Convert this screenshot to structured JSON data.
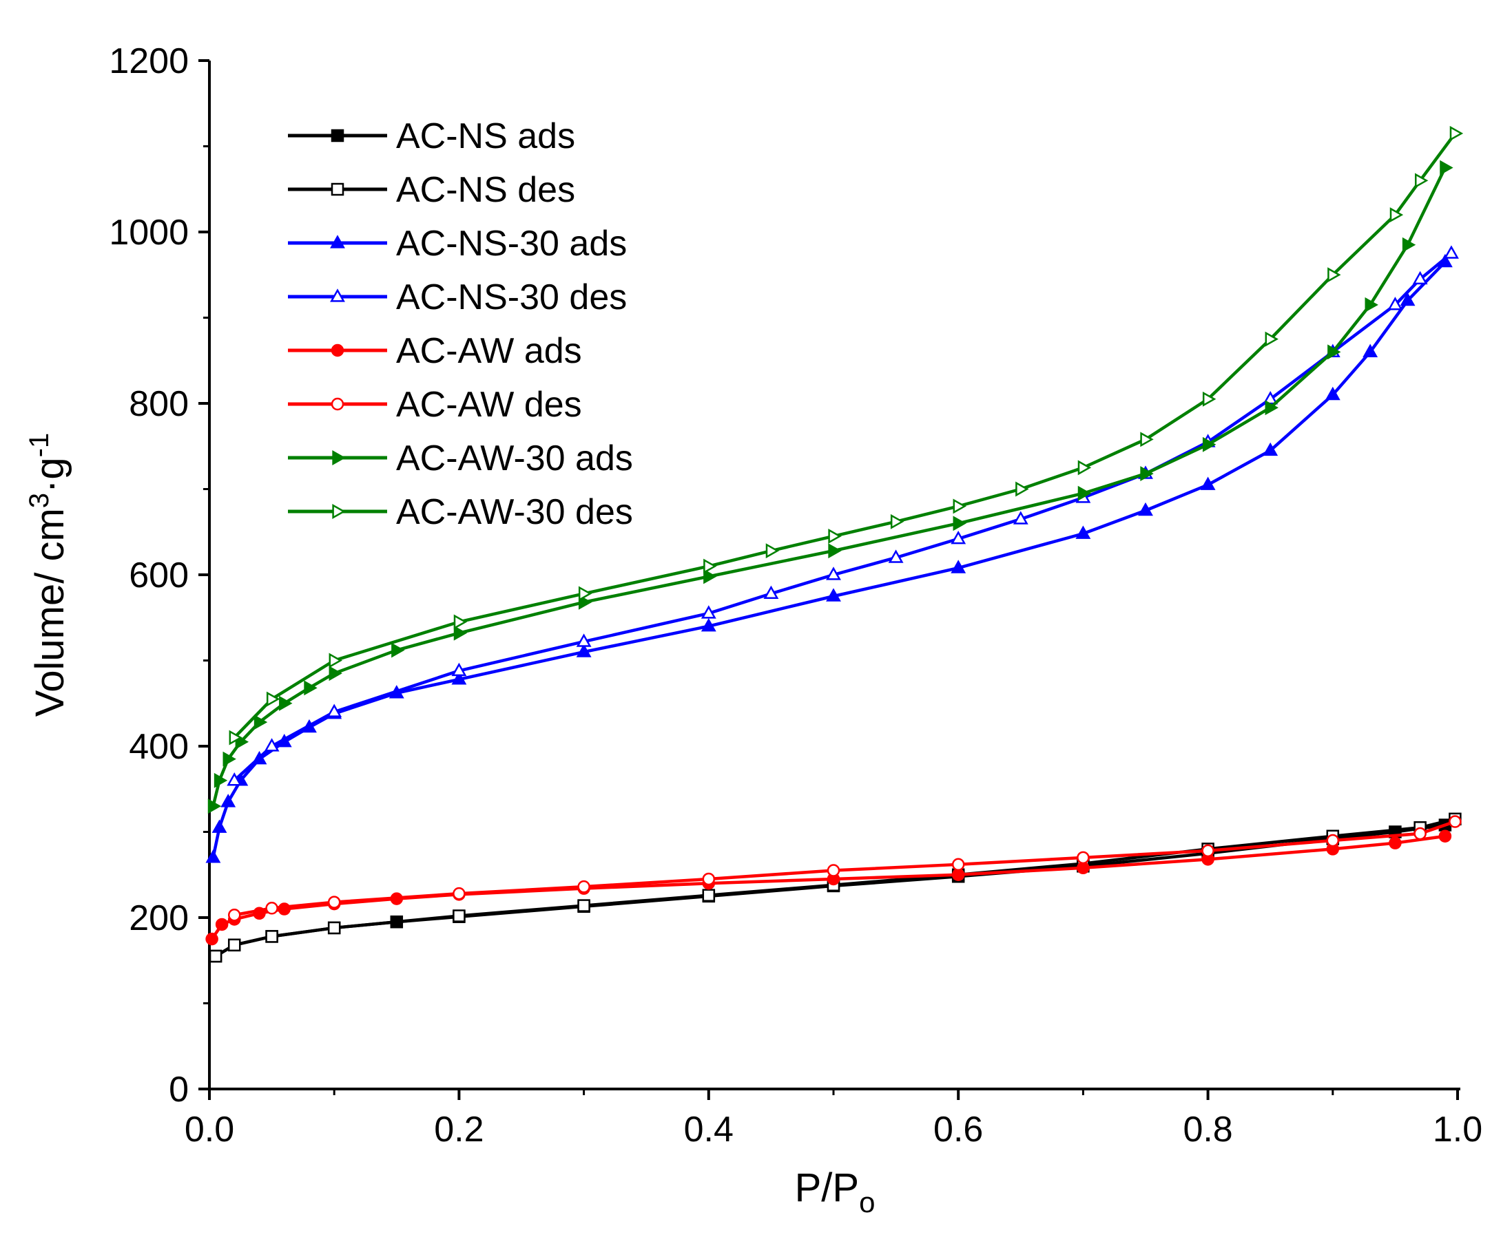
{
  "chart_data": {
    "type": "line",
    "title": "",
    "xlabel": "P/P",
    "xlabel_sub": "o",
    "ylabel_main": "Volume/ cm",
    "ylabel_sup1": "3",
    "ylabel_mid": "·g",
    "ylabel_sup2": "-1",
    "xlim": [
      0,
      1.0
    ],
    "ylim": [
      0,
      1200
    ],
    "xticks": [
      0.0,
      0.2,
      0.4,
      0.6,
      0.8,
      1.0
    ],
    "xtick_labels": [
      "0.0",
      "0.2",
      "0.4",
      "0.6",
      "0.8",
      "1.0"
    ],
    "yticks": [
      0,
      200,
      400,
      600,
      800,
      1000,
      1200
    ],
    "ytick_labels": [
      "0",
      "200",
      "400",
      "600",
      "800",
      "1000",
      "1200"
    ],
    "legend_position": "top-left",
    "series": [
      {
        "name": "AC-NS ads",
        "color": "#000000",
        "marker": "square-filled",
        "x": [
          0.005,
          0.02,
          0.05,
          0.1,
          0.15,
          0.2,
          0.3,
          0.4,
          0.5,
          0.6,
          0.7,
          0.8,
          0.9,
          0.95,
          0.99
        ],
        "y": [
          155,
          168,
          178,
          188,
          195,
          201,
          213,
          225,
          237,
          248,
          260,
          275,
          292,
          300,
          308
        ]
      },
      {
        "name": "AC-NS des",
        "color": "#000000",
        "marker": "square-open",
        "x": [
          0.998,
          0.97,
          0.9,
          0.8,
          0.7,
          0.6,
          0.5,
          0.4,
          0.3,
          0.2,
          0.1,
          0.05,
          0.02,
          0.005
        ],
        "y": [
          315,
          305,
          295,
          280,
          263,
          250,
          238,
          226,
          214,
          202,
          188,
          178,
          168,
          155
        ]
      },
      {
        "name": "AC-NS-30 ads",
        "color": "#0000ff",
        "marker": "triangle-up-filled",
        "x": [
          0.003,
          0.008,
          0.015,
          0.025,
          0.04,
          0.06,
          0.08,
          0.1,
          0.15,
          0.2,
          0.3,
          0.4,
          0.5,
          0.6,
          0.7,
          0.75,
          0.8,
          0.85,
          0.9,
          0.93,
          0.96,
          0.99
        ],
        "y": [
          270,
          305,
          335,
          360,
          385,
          405,
          422,
          438,
          462,
          478,
          510,
          540,
          575,
          608,
          648,
          675,
          705,
          745,
          810,
          860,
          920,
          965
        ]
      },
      {
        "name": "AC-NS-30 des",
        "color": "#0000ff",
        "marker": "triangle-up-open",
        "x": [
          0.995,
          0.97,
          0.95,
          0.9,
          0.85,
          0.8,
          0.75,
          0.7,
          0.65,
          0.6,
          0.55,
          0.5,
          0.45,
          0.4,
          0.3,
          0.2,
          0.1,
          0.05,
          0.02
        ],
        "y": [
          975,
          945,
          915,
          860,
          805,
          755,
          718,
          690,
          665,
          642,
          620,
          600,
          578,
          555,
          522,
          488,
          440,
          400,
          360
        ]
      },
      {
        "name": "AC-AW ads",
        "color": "#ff0000",
        "marker": "circle-filled",
        "x": [
          0.002,
          0.01,
          0.02,
          0.04,
          0.06,
          0.1,
          0.15,
          0.2,
          0.3,
          0.4,
          0.5,
          0.6,
          0.7,
          0.8,
          0.9,
          0.95,
          0.99
        ],
        "y": [
          175,
          192,
          198,
          205,
          210,
          216,
          222,
          227,
          234,
          240,
          245,
          250,
          258,
          268,
          280,
          287,
          295
        ]
      },
      {
        "name": "AC-AW des",
        "color": "#ff0000",
        "marker": "circle-open",
        "x": [
          0.998,
          0.97,
          0.9,
          0.8,
          0.7,
          0.6,
          0.5,
          0.4,
          0.3,
          0.2,
          0.1,
          0.05,
          0.02
        ],
        "y": [
          312,
          298,
          290,
          278,
          270,
          262,
          255,
          245,
          236,
          228,
          218,
          211,
          203
        ]
      },
      {
        "name": "AC-AW-30 ads",
        "color": "#008000",
        "marker": "triangle-right-filled",
        "x": [
          0.003,
          0.008,
          0.015,
          0.025,
          0.04,
          0.06,
          0.08,
          0.1,
          0.15,
          0.2,
          0.3,
          0.4,
          0.5,
          0.6,
          0.7,
          0.75,
          0.8,
          0.85,
          0.9,
          0.93,
          0.96,
          0.99
        ],
        "y": [
          330,
          360,
          385,
          405,
          428,
          450,
          468,
          485,
          512,
          532,
          568,
          598,
          628,
          660,
          695,
          718,
          752,
          795,
          860,
          915,
          985,
          1075
        ]
      },
      {
        "name": "AC-AW-30 des",
        "color": "#008000",
        "marker": "triangle-right-open",
        "x": [
          0.998,
          0.97,
          0.95,
          0.9,
          0.85,
          0.8,
          0.75,
          0.7,
          0.65,
          0.6,
          0.55,
          0.5,
          0.45,
          0.4,
          0.3,
          0.2,
          0.1,
          0.05,
          0.02
        ],
        "y": [
          1115,
          1060,
          1020,
          950,
          875,
          805,
          758,
          725,
          700,
          680,
          662,
          645,
          628,
          610,
          578,
          545,
          500,
          455,
          410
        ]
      }
    ]
  }
}
